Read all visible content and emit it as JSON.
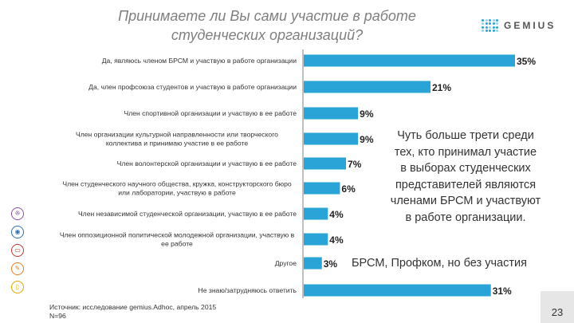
{
  "title_lines": [
    "Принимаете ли Вы сами участие в работе",
    "студенческих организаций?"
  ],
  "logo_text": "GEMIUS",
  "accent_color": "#2aa4d6",
  "chart_data": {
    "type": "bar",
    "orientation": "horizontal",
    "bar_color": "#2aa4d6",
    "xlim": [
      0,
      35
    ],
    "grid": false,
    "categories": [
      [
        "Да, являюсь членом БРСМ и участвую в работе организации"
      ],
      [
        "Да, член профсоюза студентов и участвую в работе организации"
      ],
      [
        "Член спортивной организации и участвую в ее работе"
      ],
      [
        "Член организации культурной направленности или творческого",
        "коллектива и принимаю участие в ее работе"
      ],
      [
        "Член волонтерской организации и участвую в ее работе"
      ],
      [
        "Член студенческого научного общества, кружка, конструкторского бюро",
        "или лаборатории, участвую в работе"
      ],
      [
        "Член независимой студенческой организации, участвую в ее работе"
      ],
      [
        "Член оппозиционной политической молодежной организации, участвую в",
        "ее работе"
      ],
      [
        "Другое"
      ],
      [
        "Не знаю/затрудняюсь ответить"
      ]
    ],
    "values": [
      35,
      21,
      9,
      9,
      7,
      6,
      4,
      4,
      3,
      31
    ],
    "value_labels": [
      "35%",
      "21%",
      "9%",
      "9%",
      "7%",
      "6%",
      "4%",
      "4%",
      "3%",
      "31%"
    ]
  },
  "callout_lines": [
    "Чуть больше трети среди",
    "тех, кто принимал участие",
    "в выборах студенческих",
    "представителей являются",
    "членами БРСМ и участвуют",
    "в работе организации."
  ],
  "annotation": "БРСМ, Профком, но без участия",
  "source_lines": [
    "Источник: исследование gemius.Adhoc, апрель 2015",
    "N=96"
  ],
  "page_number": "23",
  "side_icons": [
    {
      "name": "people-icon",
      "color": "#8a4fa0",
      "glyph": "ꔮ"
    },
    {
      "name": "globe-icon",
      "color": "#2e6fb5",
      "glyph": "◉"
    },
    {
      "name": "cart-icon",
      "color": "#c0392b",
      "glyph": "▭"
    },
    {
      "name": "wrench-icon",
      "color": "#e67e22",
      "glyph": "✎"
    },
    {
      "name": "document-icon",
      "color": "#e0a800",
      "glyph": "▯"
    }
  ]
}
